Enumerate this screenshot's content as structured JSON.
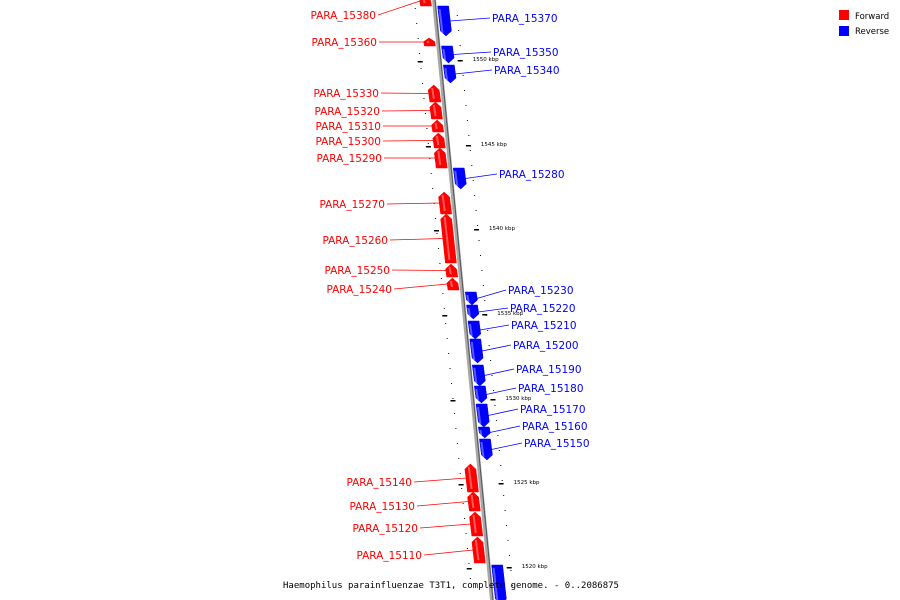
{
  "legend": [
    {
      "label": "Forward",
      "color": "#ff0000"
    },
    {
      "label": "Reverse",
      "color": "#0000ff"
    }
  ],
  "caption": "Haemophilus parainfluenzae T3T1, complete genome. - 0..2086875",
  "kbp_marks": [
    "1550 kbp",
    "1545 kbp",
    "1540 kbp",
    "1535 kbp",
    "1530 kbp",
    "1525 kbp",
    "1520 kbp"
  ],
  "genes": [
    {
      "name": "PARA_15380",
      "strand": "forward"
    },
    {
      "name": "PARA_15370",
      "strand": "reverse"
    },
    {
      "name": "PARA_15360",
      "strand": "forward"
    },
    {
      "name": "PARA_15350",
      "strand": "reverse"
    },
    {
      "name": "PARA_15340",
      "strand": "reverse"
    },
    {
      "name": "PARA_15330",
      "strand": "forward"
    },
    {
      "name": "PARA_15320",
      "strand": "forward"
    },
    {
      "name": "PARA_15310",
      "strand": "forward"
    },
    {
      "name": "PARA_15300",
      "strand": "forward"
    },
    {
      "name": "PARA_15290",
      "strand": "forward"
    },
    {
      "name": "PARA_15280",
      "strand": "reverse"
    },
    {
      "name": "PARA_15270",
      "strand": "forward"
    },
    {
      "name": "PARA_15260",
      "strand": "forward"
    },
    {
      "name": "PARA_15250",
      "strand": "forward"
    },
    {
      "name": "PARA_15240",
      "strand": "forward"
    },
    {
      "name": "PARA_15230",
      "strand": "reverse"
    },
    {
      "name": "PARA_15220",
      "strand": "reverse"
    },
    {
      "name": "PARA_15210",
      "strand": "reverse"
    },
    {
      "name": "PARA_15200",
      "strand": "reverse"
    },
    {
      "name": "PARA_15190",
      "strand": "reverse"
    },
    {
      "name": "PARA_15180",
      "strand": "reverse"
    },
    {
      "name": "PARA_15170",
      "strand": "reverse"
    },
    {
      "name": "PARA_15160",
      "strand": "reverse"
    },
    {
      "name": "PARA_15150",
      "strand": "reverse"
    },
    {
      "name": "PARA_15140",
      "strand": "forward"
    },
    {
      "name": "PARA_15130",
      "strand": "forward"
    },
    {
      "name": "PARA_15120",
      "strand": "forward"
    },
    {
      "name": "PARA_15110",
      "strand": "forward"
    },
    {
      "name": "",
      "strand": "reverse"
    }
  ]
}
